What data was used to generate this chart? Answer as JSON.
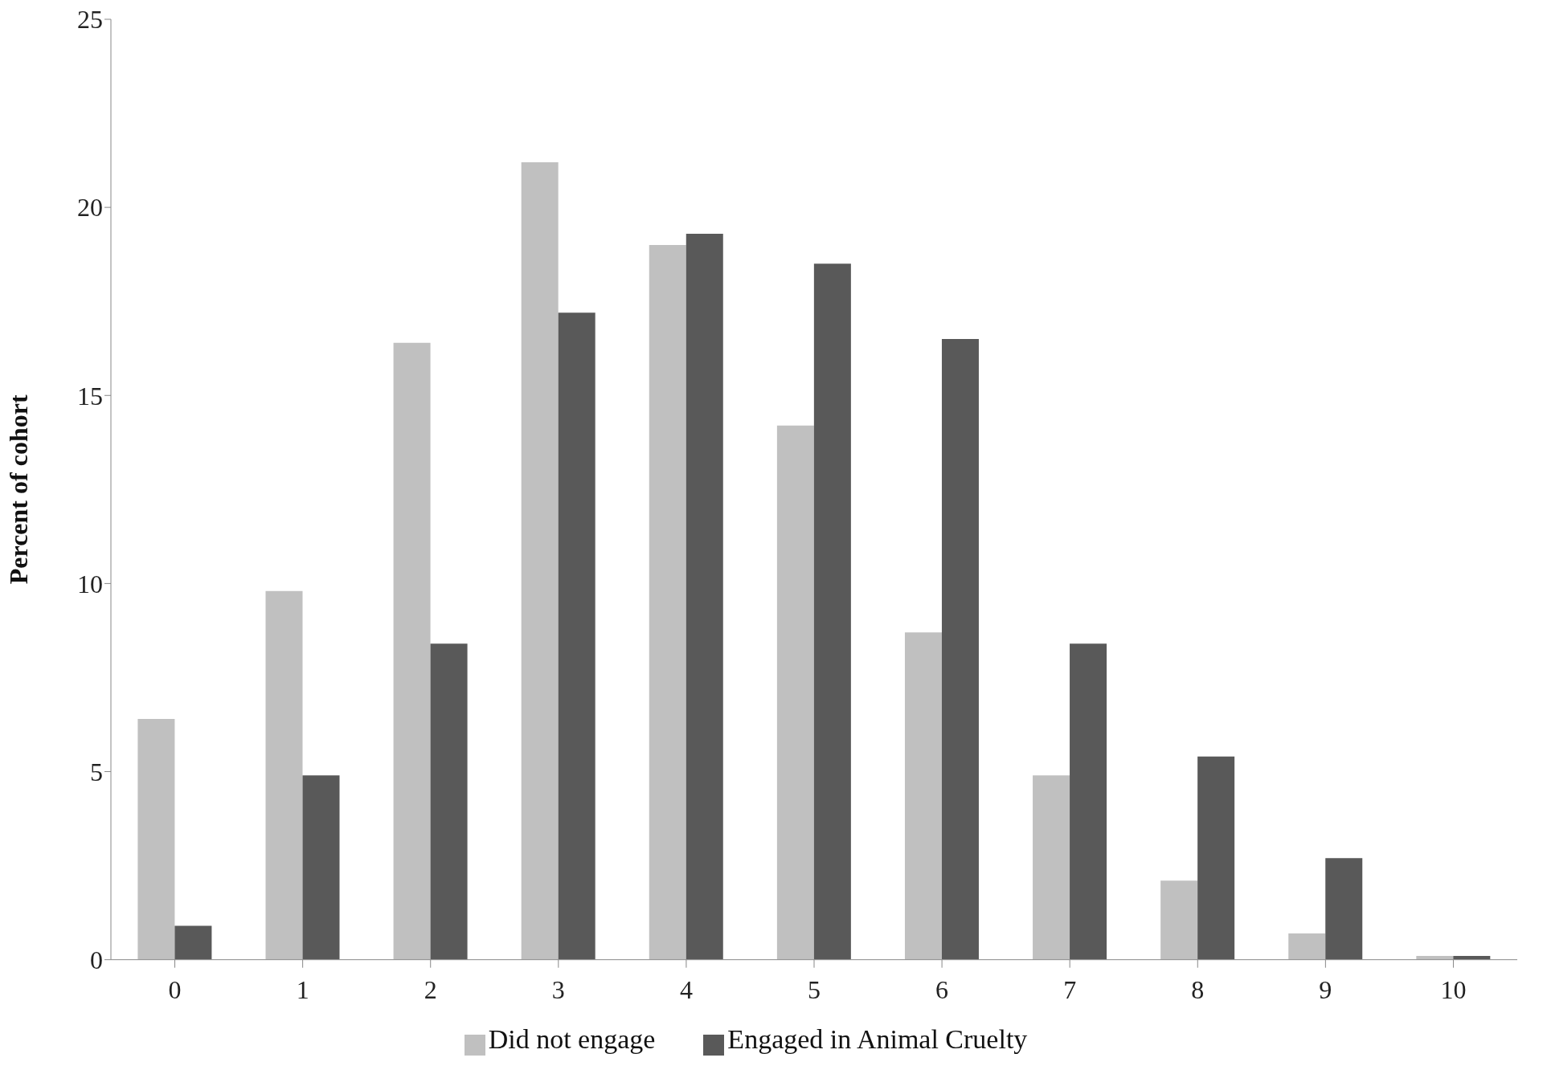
{
  "chart_data": {
    "type": "bar",
    "ylabel": "Percent of cohort",
    "categories": [
      "0",
      "1",
      "2",
      "3",
      "4",
      "5",
      "6",
      "7",
      "8",
      "9",
      "10"
    ],
    "series": [
      {
        "name": "Did not engage",
        "color": "#c0c0c0",
        "values": [
          6.4,
          9.8,
          16.4,
          21.2,
          19.0,
          14.2,
          8.7,
          4.9,
          2.1,
          0.7,
          0.1
        ]
      },
      {
        "name": "Engaged in Animal Cruelty",
        "color": "#595959",
        "values": [
          0.9,
          4.9,
          8.4,
          17.2,
          19.3,
          18.5,
          16.5,
          8.4,
          5.4,
          2.7,
          0.1
        ]
      }
    ],
    "ylim": [
      0,
      25
    ],
    "yticks": [
      0,
      5,
      10,
      15,
      20,
      25
    ],
    "grid": false,
    "legend": "bottom"
  }
}
